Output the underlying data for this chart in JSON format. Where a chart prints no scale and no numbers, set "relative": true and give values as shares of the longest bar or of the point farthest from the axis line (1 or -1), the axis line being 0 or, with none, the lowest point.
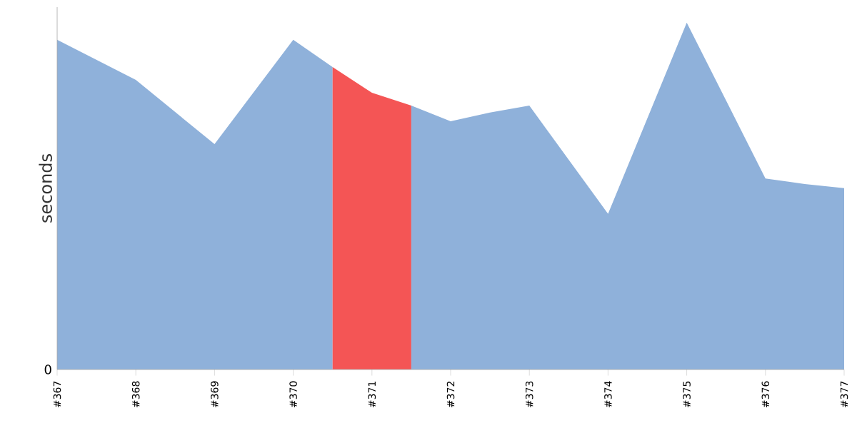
{
  "chart_data": {
    "type": "area",
    "ylabel": "seconds",
    "relative": true,
    "xlim": [
      367,
      377
    ],
    "xticks": [
      {
        "value": 367,
        "label": "#367"
      },
      {
        "value": 368,
        "label": "#368"
      },
      {
        "value": 369,
        "label": "#369"
      },
      {
        "value": 370,
        "label": "#370"
      },
      {
        "value": 371,
        "label": "#371"
      },
      {
        "value": 372,
        "label": "#372"
      },
      {
        "value": 373,
        "label": "#373"
      },
      {
        "value": 374,
        "label": "#374"
      },
      {
        "value": 375,
        "label": "#375"
      },
      {
        "value": 376,
        "label": "#376"
      },
      {
        "value": 377,
        "label": "#377"
      }
    ],
    "series": [
      {
        "color": "#8fb1da",
        "x": [
          367,
          368,
          369,
          370,
          370.5
        ],
        "values": [
          0.951,
          0.835,
          0.65,
          0.951,
          0.872
        ]
      },
      {
        "color": "#f45555",
        "x": [
          370.5,
          371,
          371.5
        ],
        "values": [
          0.872,
          0.798,
          0.761
        ]
      },
      {
        "color": "#8fb1da",
        "x": [
          371.5,
          372,
          372.5,
          373,
          374,
          375,
          376,
          376.5,
          377
        ],
        "values": [
          0.761,
          0.716,
          0.741,
          0.761,
          0.449,
          1,
          0.551,
          0.535,
          0.523
        ]
      }
    ],
    "annotations": [
      "0"
    ]
  }
}
